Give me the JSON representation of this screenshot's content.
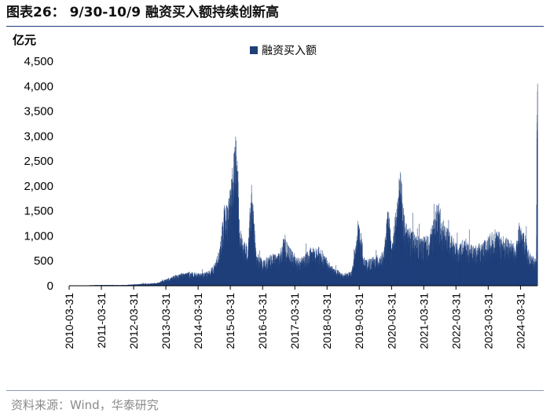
{
  "header": {
    "title": "图表26：  9/30-10/9 融资买入额持续创新高"
  },
  "footer": {
    "source": "资料来源：Wind，华泰研究"
  },
  "colors": {
    "bar": "#1f3f7a",
    "rule": "#1f3f7a"
  },
  "chart_data": {
    "type": "bar",
    "title": "",
    "ylabel": "亿元",
    "xlabel": "",
    "ylim": [
      0,
      4500
    ],
    "yticks": [
      0,
      500,
      1000,
      1500,
      2000,
      2500,
      3000,
      3500,
      4000,
      4500
    ],
    "ytick_labels": [
      "0",
      "500",
      "1,000",
      "1,500",
      "2,000",
      "2,500",
      "3,000",
      "3,500",
      "4,000",
      "4,500"
    ],
    "xtick_labels": [
      "2010-03-31",
      "2011-03-31",
      "2012-03-31",
      "2013-03-31",
      "2014-03-31",
      "2015-03-31",
      "2016-03-31",
      "2017-03-31",
      "2018-03-31",
      "2019-03-31",
      "2020-03-31",
      "2021-03-31",
      "2022-03-31",
      "2023-03-31",
      "2024-03-31"
    ],
    "x_start": "2010-03-31",
    "x_end": "2024-10-09",
    "legend": {
      "position": "top-center"
    },
    "series": [
      {
        "name": "融资买入额",
        "points": [
          [
            "2010-03-31",
            1
          ],
          [
            "2010-06-30",
            4
          ],
          [
            "2010-09-30",
            6
          ],
          [
            "2010-12-31",
            12
          ],
          [
            "2011-03-31",
            15
          ],
          [
            "2011-06-30",
            16
          ],
          [
            "2011-09-30",
            13
          ],
          [
            "2011-12-31",
            14
          ],
          [
            "2012-03-31",
            25
          ],
          [
            "2012-06-30",
            38
          ],
          [
            "2012-09-30",
            40
          ],
          [
            "2012-12-31",
            60
          ],
          [
            "2013-03-31",
            120
          ],
          [
            "2013-06-30",
            180
          ],
          [
            "2013-09-30",
            230
          ],
          [
            "2013-12-31",
            250
          ],
          [
            "2014-03-31",
            220
          ],
          [
            "2014-06-30",
            230
          ],
          [
            "2014-09-30",
            380
          ],
          [
            "2014-12-01",
            700
          ],
          [
            "2015-01-15",
            1400
          ],
          [
            "2015-03-01",
            1500
          ],
          [
            "2015-04-20",
            2100
          ],
          [
            "2015-05-28",
            2680
          ],
          [
            "2015-06-15",
            2500
          ],
          [
            "2015-07-10",
            1100
          ],
          [
            "2015-08-20",
            800
          ],
          [
            "2015-10-15",
            700
          ],
          [
            "2015-11-20",
            1920
          ],
          [
            "2016-01-15",
            600
          ],
          [
            "2016-04-01",
            450
          ],
          [
            "2016-07-01",
            550
          ],
          [
            "2016-10-01",
            580
          ],
          [
            "2016-11-25",
            860
          ],
          [
            "2017-03-01",
            600
          ],
          [
            "2017-06-01",
            480
          ],
          [
            "2017-09-01",
            650
          ],
          [
            "2017-11-20",
            720
          ],
          [
            "2018-01-25",
            650
          ],
          [
            "2018-04-01",
            450
          ],
          [
            "2018-07-01",
            300
          ],
          [
            "2018-10-01",
            220
          ],
          [
            "2018-12-31",
            250
          ],
          [
            "2019-02-25",
            800
          ],
          [
            "2019-03-08",
            1220
          ],
          [
            "2019-04-15",
            950
          ],
          [
            "2019-06-01",
            450
          ],
          [
            "2019-09-01",
            500
          ],
          [
            "2019-12-31",
            600
          ],
          [
            "2020-02-20",
            1430
          ],
          [
            "2020-04-01",
            700
          ],
          [
            "2020-07-07",
            2100
          ],
          [
            "2020-09-01",
            1100
          ],
          [
            "2020-12-31",
            900
          ],
          [
            "2021-03-01",
            850
          ],
          [
            "2021-06-01",
            900
          ],
          [
            "2021-09-10",
            1520
          ],
          [
            "2021-10-25",
            1150
          ],
          [
            "2022-01-01",
            1000
          ],
          [
            "2022-04-20",
            700
          ],
          [
            "2022-07-01",
            850
          ],
          [
            "2022-10-01",
            700
          ],
          [
            "2022-12-31",
            750
          ],
          [
            "2023-03-01",
            850
          ],
          [
            "2023-06-20",
            1000
          ],
          [
            "2023-09-01",
            900
          ],
          [
            "2023-12-15",
            800
          ],
          [
            "2024-02-01",
            700
          ],
          [
            "2024-03-15",
            1100
          ],
          [
            "2024-05-20",
            900
          ],
          [
            "2024-07-01",
            600
          ],
          [
            "2024-09-24",
            450
          ],
          [
            "2024-09-30",
            2800
          ],
          [
            "2024-10-08",
            4050
          ],
          [
            "2024-10-09",
            3100
          ]
        ]
      }
    ]
  }
}
